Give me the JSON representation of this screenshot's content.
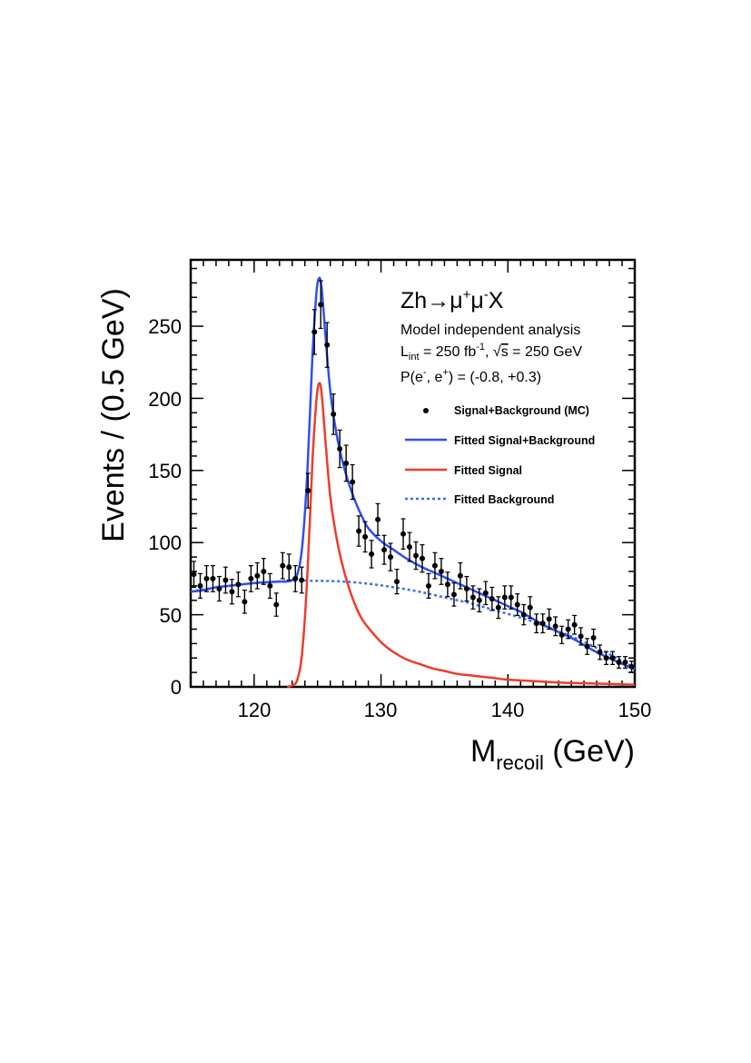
{
  "chart_data": {
    "type": "scatter",
    "title": "",
    "xlabel": {
      "main": "M",
      "sub": "recoil",
      "unit": " (GeV)"
    },
    "ylabel": "Events / (0.5 GeV)",
    "xlim": [
      115,
      150
    ],
    "ylim": [
      0,
      296
    ],
    "x_ticks": [
      120,
      130,
      140,
      150
    ],
    "y_ticks": [
      0,
      50,
      100,
      150,
      200,
      250
    ],
    "annotations": {
      "process": {
        "base": "Zh",
        "arrow": "→",
        "mu1": "μ",
        "plus": "+",
        "mu2": "μ",
        "minus": "-",
        "x": "X"
      },
      "analysis": "Model independent analysis",
      "lumi": {
        "L": "L",
        "int": "int",
        "value": " = 250 fb",
        "exp": "-1",
        "sep": ", ",
        "sqrt": "√",
        "s": "s",
        "energy": " = 250 GeV"
      },
      "polarization": {
        "p": "P(e",
        "em": "-",
        "mid": ", e",
        "ep": "+",
        "rest": ") = (-0.8, +0.3)"
      }
    },
    "legend": {
      "position": "upper-right",
      "entries": [
        {
          "label": "Signal+Background (MC)",
          "style": "marker",
          "color": "#000000"
        },
        {
          "label": "Fitted Signal+Background",
          "style": "line",
          "color": "#3050ee"
        },
        {
          "label": "Fitted Signal",
          "style": "line",
          "color": "#ee3d2a"
        },
        {
          "label": "Fitted Background",
          "style": "dotted",
          "color": "#3a6ff0"
        }
      ]
    },
    "series": [
      {
        "name": "Signal+Background (MC)",
        "color": "#000000",
        "x": [
          115.25,
          115.75,
          116.25,
          116.75,
          117.25,
          117.75,
          118.25,
          118.75,
          119.25,
          119.75,
          120.25,
          120.75,
          121.25,
          121.75,
          122.25,
          122.75,
          123.25,
          123.75,
          124.25,
          124.75,
          125.25,
          125.75,
          126.25,
          126.75,
          127.25,
          127.75,
          128.25,
          128.75,
          129.25,
          129.75,
          130.25,
          130.75,
          131.25,
          131.75,
          132.25,
          132.75,
          133.25,
          133.75,
          134.25,
          134.75,
          135.25,
          135.75,
          136.25,
          136.75,
          137.25,
          137.75,
          138.25,
          138.75,
          139.25,
          139.75,
          140.25,
          140.75,
          141.25,
          141.75,
          142.25,
          142.75,
          143.25,
          143.75,
          144.25,
          144.75,
          145.25,
          145.75,
          146.25,
          146.75,
          147.25,
          147.75,
          148.25,
          148.75,
          149.25,
          149.75
        ],
        "y": [
          78,
          70,
          75,
          75,
          68,
          74,
          66,
          71,
          59,
          75,
          77,
          80,
          70,
          57,
          84,
          83,
          75,
          74,
          136,
          246,
          265,
          237,
          189,
          165,
          155,
          142,
          108,
          104,
          92,
          116,
          95,
          90,
          73,
          106,
          97,
          91,
          89,
          70,
          84,
          80,
          71,
          64,
          77,
          68,
          62,
          60,
          65,
          61,
          55,
          62,
          62,
          57,
          50,
          55,
          44,
          44,
          47,
          42,
          36,
          40,
          43,
          35,
          28,
          34,
          24,
          20,
          20,
          17,
          17,
          14
        ],
        "yerr": [
          9,
          8.5,
          9,
          9,
          8.5,
          9,
          8.5,
          8.5,
          8,
          9,
          9,
          9,
          8.5,
          8,
          9,
          9,
          9,
          9,
          12,
          15.5,
          16.5,
          15.5,
          14,
          13,
          12.5,
          12,
          10.5,
          10.5,
          9.5,
          11,
          10,
          9.5,
          8.5,
          10.5,
          10,
          9.5,
          9.5,
          8.5,
          9,
          9,
          8.5,
          8,
          9,
          8.5,
          8,
          8,
          8,
          8,
          7.5,
          8,
          8,
          7.5,
          7,
          7.5,
          6.5,
          6.5,
          7,
          6.5,
          6,
          6.5,
          6.5,
          6,
          5.5,
          6,
          5,
          4.5,
          4.5,
          4,
          4,
          3.8
        ]
      },
      {
        "name": "Fitted Signal+Background",
        "color": "#3050ee",
        "x": [
          115,
          116,
          117,
          118,
          119,
          120,
          121,
          122,
          122.5,
          123,
          123.4,
          123.8,
          124.2,
          124.6,
          124.9,
          125.1,
          125.3,
          125.6,
          126,
          126.5,
          127,
          127.5,
          128,
          128.5,
          129,
          130,
          131,
          132,
          133,
          134,
          135,
          136,
          137,
          138,
          139,
          140,
          141,
          142,
          143,
          144,
          145,
          146,
          147,
          148,
          149,
          150
        ],
        "y": [
          66,
          67,
          69,
          70,
          71,
          72,
          72.5,
          73,
          73,
          74,
          78,
          98,
          150,
          230,
          272,
          283,
          278,
          246,
          205,
          175,
          155,
          140,
          128,
          118,
          110,
          101,
          95,
          89,
          84,
          80,
          76,
          72,
          68,
          64,
          60,
          56,
          52,
          47,
          42,
          38,
          34,
          29,
          24,
          20,
          16,
          12
        ]
      },
      {
        "name": "Fitted Signal",
        "color": "#ee3d2a",
        "x": [
          122.6,
          123,
          123.4,
          123.8,
          124.2,
          124.6,
          124.9,
          125.1,
          125.3,
          125.6,
          126,
          126.5,
          127,
          127.5,
          128,
          128.5,
          129,
          130,
          131,
          132,
          133,
          134,
          135,
          136,
          137,
          138,
          139,
          140,
          142,
          144,
          146,
          148,
          150
        ],
        "y": [
          0,
          1,
          5,
          25,
          78,
          157,
          198,
          210,
          205,
          173,
          132,
          103,
          83,
          68,
          56,
          47,
          41,
          31,
          24,
          19,
          16,
          13,
          11,
          9,
          8,
          7,
          6,
          5,
          4,
          3,
          2.5,
          2,
          1.5
        ]
      },
      {
        "name": "Fitted Background",
        "color": "#3a6ff0",
        "x": [
          115,
          117,
          119,
          121,
          123,
          125,
          127,
          129,
          131,
          133,
          135,
          137,
          139,
          141,
          143,
          145,
          147,
          149,
          150
        ],
        "y": [
          66,
          69,
          71,
          72.5,
          73.5,
          73.5,
          73,
          71.5,
          69,
          66,
          62,
          58,
          53,
          48,
          42,
          35,
          27,
          18,
          13
        ]
      }
    ]
  }
}
